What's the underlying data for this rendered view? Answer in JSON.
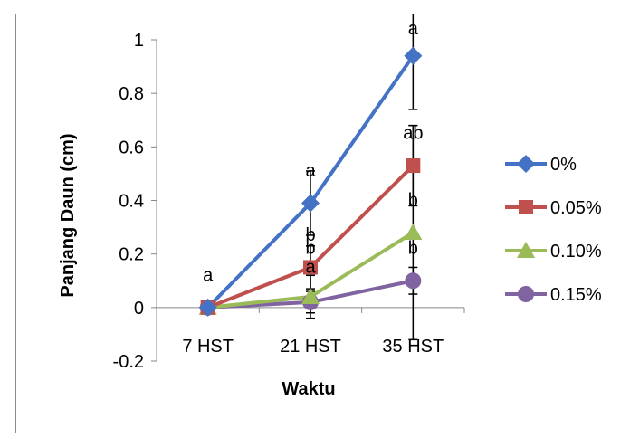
{
  "chart_data": {
    "type": "line",
    "title": "",
    "xlabel": "Waktu",
    "ylabel": "Panjang Daun (cm)",
    "categories": [
      "7 HST",
      "21 HST",
      "35 HST"
    ],
    "ylim": [
      -0.2,
      1
    ],
    "yticks": [
      -0.2,
      0,
      0.2,
      0.4,
      0.6,
      0.8,
      1
    ],
    "ytick_labels": [
      "-0.2",
      "0",
      "0.2",
      "0.4",
      "0.6",
      "0.8",
      "1"
    ],
    "grid": false,
    "legend_position": "right",
    "series": [
      {
        "name": "0%",
        "values": [
          0,
          0.39,
          0.94
        ],
        "error": [
          0,
          0.12,
          0.2
        ],
        "color": "#4472C4",
        "marker": "diamond"
      },
      {
        "name": "0.05%",
        "values": [
          0,
          0.15,
          0.53
        ],
        "error": [
          0,
          0.08,
          0.15
        ],
        "color": "#C0504D",
        "marker": "square"
      },
      {
        "name": "0.10%",
        "values": [
          0,
          0.04,
          0.28
        ],
        "error": [
          0,
          0.08,
          0.4
        ],
        "color": "#9BBB59",
        "marker": "triangle"
      },
      {
        "name": "0.15%",
        "values": [
          0,
          0.02,
          0.1
        ],
        "error": [
          0,
          0.04,
          0.05
        ],
        "color": "#8064A2",
        "marker": "circle"
      }
    ],
    "annotations": [
      {
        "text": "a",
        "category": 0,
        "y": 0.1
      },
      {
        "text": "a",
        "category": 1,
        "y": 0.49
      },
      {
        "text": "b",
        "category": 1,
        "y": 0.25
      },
      {
        "text": "b",
        "category": 1,
        "y": 0.2
      },
      {
        "text": "a",
        "category": 1,
        "y": 0.13
      },
      {
        "text": "a",
        "category": 2,
        "y": 1.02
      },
      {
        "text": "ab",
        "category": 2,
        "y": 0.63
      },
      {
        "text": "b",
        "category": 2,
        "y": 0.38
      },
      {
        "text": "b",
        "category": 2,
        "y": 0.2
      }
    ]
  }
}
